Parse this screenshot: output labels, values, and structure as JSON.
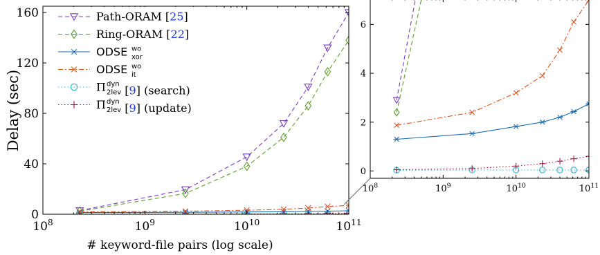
{
  "chart_data": [
    {
      "type": "line",
      "x_scale": "log",
      "xlabel": "# keyword-file pairs (log scale)",
      "ylabel": "Delay (sec)",
      "xlim": [
        100000000,
        100000000000
      ],
      "ylim": [
        0,
        165
      ],
      "x_ticks": [
        {
          "value": 100000000,
          "base": "10",
          "exp": "8"
        },
        {
          "value": 1000000000,
          "base": "10",
          "exp": "9"
        },
        {
          "value": 10000000000,
          "base": "10",
          "exp": "10"
        },
        {
          "value": 100000000000,
          "base": "10",
          "exp": "11"
        }
      ],
      "y_ticks": [
        0,
        40,
        80,
        120,
        160
      ],
      "legend_position": "top-left",
      "series": [
        {
          "key": "path",
          "name": "Path-ORAM",
          "cite": "25",
          "color": "#7b3fbf",
          "marker": "triangle-down",
          "dash": "6,4",
          "x": [
            230000000,
            2500000000,
            10000000000,
            23000000000,
            40000000000,
            62000000000,
            100000000000
          ],
          "y": [
            2.9,
            19.5,
            45.5,
            72,
            101,
            132,
            160
          ]
        },
        {
          "key": "ring",
          "name": "Ring-ORAM",
          "cite": "22",
          "color": "#5e9e2e",
          "marker": "diamond",
          "dash": "6,4",
          "x": [
            230000000,
            2500000000,
            10000000000,
            23000000000,
            40000000000,
            62000000000,
            100000000000
          ],
          "y": [
            2.4,
            16.5,
            38,
            61,
            86,
            113,
            138
          ]
        },
        {
          "key": "odse_xor",
          "name": "ODSE",
          "sup": "wo",
          "sub": "xor",
          "color": "#1f6db0",
          "marker": "asterisk",
          "dash": "",
          "x": [
            230000000,
            2500000000,
            10000000000,
            23000000000,
            40000000000,
            62000000000,
            100000000000
          ],
          "y": [
            1.3,
            1.53,
            1.82,
            2.0,
            2.2,
            2.43,
            2.75
          ]
        },
        {
          "key": "odse_it",
          "name": "ODSE",
          "sup": "wo",
          "sub": "it",
          "color": "#d9541e",
          "marker": "x",
          "dash": "7,3,2,3",
          "x": [
            230000000,
            2500000000,
            10000000000,
            23000000000,
            40000000000,
            62000000000,
            100000000000
          ],
          "y": [
            1.87,
            2.4,
            3.2,
            3.9,
            4.95,
            6.1,
            7.0
          ]
        },
        {
          "key": "pi_search",
          "name": "Π",
          "sup": "dyn",
          "sub": "2lev",
          "cite": "9",
          "suffix": "(search)",
          "color": "#2fb1d8",
          "marker": "circle",
          "dash": "1.5,3",
          "x": [
            230000000,
            2500000000,
            10000000000,
            23000000000,
            40000000000,
            62000000000,
            100000000000
          ],
          "y": [
            0.03,
            0.04,
            0.04,
            0.04,
            0.04,
            0.04,
            0.04
          ]
        },
        {
          "key": "pi_update",
          "name": "Π",
          "sup": "dyn",
          "sub": "2lev",
          "cite": "9",
          "suffix": "(update)",
          "color": "#a8123e",
          "marker": "plus",
          "dash": "1.5,3",
          "x": [
            230000000,
            2500000000,
            10000000000,
            23000000000,
            40000000000,
            62000000000,
            100000000000
          ],
          "y": [
            0.05,
            0.1,
            0.2,
            0.3,
            0.4,
            0.5,
            0.6
          ]
        }
      ]
    },
    {
      "type": "line",
      "x_scale": "log",
      "xlim": [
        100000000,
        100000000000
      ],
      "ylim": [
        -0.3,
        7.0
      ],
      "x_ticks": [
        {
          "value": 100000000,
          "base": "10",
          "exp": "8"
        },
        {
          "value": 1000000000,
          "base": "10",
          "exp": "9"
        },
        {
          "value": 10000000000,
          "base": "10",
          "exp": "10"
        },
        {
          "value": 100000000000,
          "base": "10",
          "exp": "11"
        }
      ],
      "y_ticks": [
        0,
        2,
        4,
        6
      ]
    }
  ]
}
